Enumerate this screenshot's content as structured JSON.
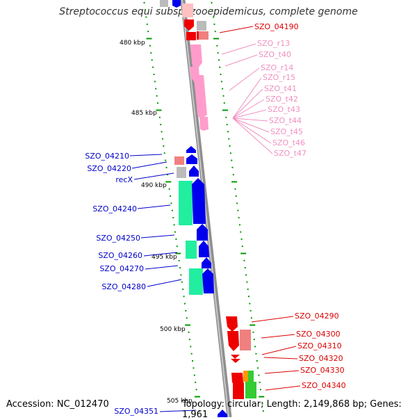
{
  "title": "Streptococcus equi subsp. zooepidemicus, complete genome",
  "footer": {
    "accession": "Accession: NC_012470",
    "stats": "Topology: circular; Length: 2,149,868 bp; Genes: 1,961"
  },
  "colors": {
    "backbone": "#8f8f8f",
    "cds_blue": "#0000ee",
    "cds_red": "#ee0000",
    "cds_pink_light": "#f08080",
    "cds_grey": "#bbbbbb",
    "rna_pink": "#ff9ccc",
    "teal": "#22eea0",
    "green": "#33cc33",
    "orange": "#ff9900",
    "tick_green": "#009900"
  },
  "kbp_labels": [
    "480 kbp",
    "485 kbp",
    "490 kbp",
    "495 kbp",
    "500 kbp",
    "505 kbp"
  ],
  "gene_labels_right_red": [
    "SZO_04190",
    "SZO_04290",
    "SZO_04300",
    "SZO_04310",
    "SZO_04320",
    "SZO_04330",
    "SZO_04340"
  ],
  "gene_labels_right_pink": [
    "SZO_r13",
    "SZO_t40",
    "SZO_r14",
    "SZO_r15",
    "SZO_t41",
    "SZO_t42",
    "SZO_t43",
    "SZO_t44",
    "SZO_t45",
    "SZO_t46",
    "SZO_t47"
  ],
  "gene_labels_left_blue": [
    "SZO_04210",
    "SZO_04220",
    "recX",
    "SZO_04240",
    "SZO_04250",
    "SZO_04260",
    "SZO_04270",
    "SZO_04280",
    "SZO_04351"
  ]
}
